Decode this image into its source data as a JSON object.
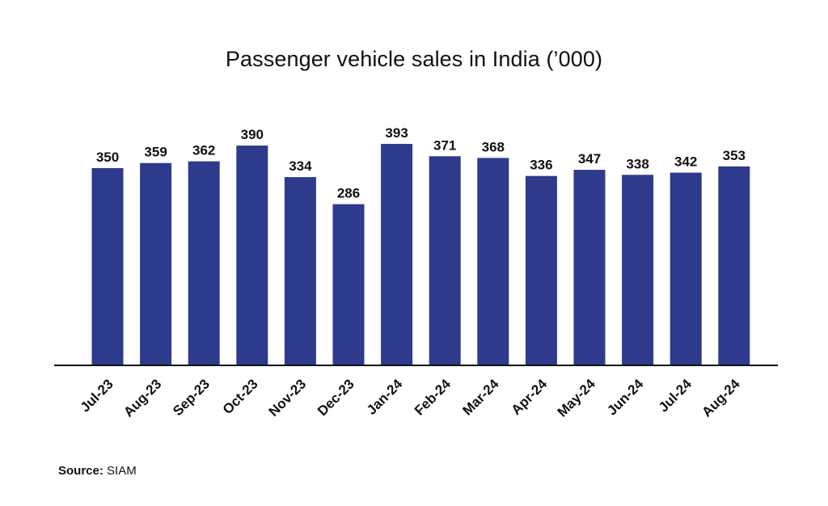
{
  "chart_data": {
    "type": "bar",
    "title": "Passenger vehicle sales in India (’000)",
    "xlabel": "",
    "ylabel": "",
    "categories": [
      "Jul-23",
      "Aug-23",
      "Sep-23",
      "Oct-23",
      "Nov-23",
      "Dec-23",
      "Jan-24",
      "Feb-24",
      "Mar-24",
      "Apr-24",
      "May-24",
      "Jun-24",
      "Jul-24",
      "Aug-24"
    ],
    "values": [
      350,
      359,
      362,
      390,
      334,
      286,
      393,
      371,
      368,
      336,
      347,
      338,
      342,
      353
    ],
    "ylim": [
      0,
      393
    ],
    "grid": false,
    "legend": "none",
    "bar_color": "#2e3a8c",
    "axis_color": "#111111"
  },
  "source": {
    "key": "Source:",
    "value": "SIAM"
  }
}
